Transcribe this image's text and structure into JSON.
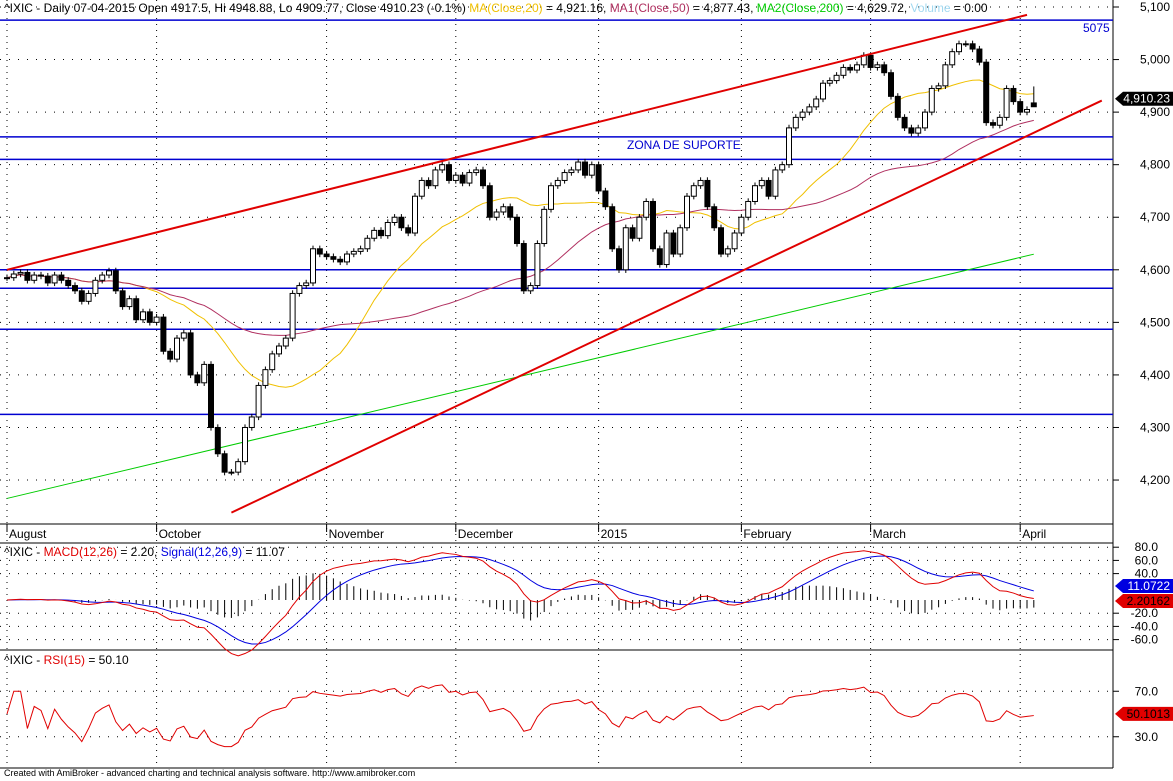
{
  "legend": {
    "main_prefix": "^IXIC - Daily 07-04-2015 Open 4917.5, Hi 4948.88, Lo 4909.77, Close 4910.23 (-0.1%)",
    "ma20_name": "MA(Close,20)",
    "ma20_val": " = 4,921.16, ",
    "ma50_name": "MA1(Close,50)",
    "ma50_val": " = 4,877.43, ",
    "ma200_name": "MA2(Close,200)",
    "ma200_val": " = 4,629.72, ",
    "vol_name": "Volume",
    "vol_val": " = 0.00",
    "macd_prefix": "^IXIC - ",
    "macd_name": "MACD(12,26)",
    "macd_val": " = 2.20, ",
    "signal_name": "Signal(12,26,9)",
    "signal_val": " = 11.07",
    "rsi_prefix": "^IXIC - ",
    "rsi_name": "RSI(15)",
    "rsi_val": " = 50.10"
  },
  "annotations": {
    "zone": "ZONA DE SUPORTE",
    "level_label": "5075"
  },
  "footer": "Created with AmiBroker - advanced charting and technical analysis software. http://www.amibroker.com",
  "colors": {
    "ma20": "#f0c000",
    "ma50": "#b03060",
    "ma200": "#00cc00",
    "volume": "#a0d8f0",
    "trend": "#e00000",
    "levels": "#0000d0",
    "macd": "#e00000",
    "signal": "#0000e0",
    "rsi": "#e00000"
  },
  "chart_data": [
    {
      "type": "candlestick",
      "symbol": "^IXIC",
      "ylim": [
        4130,
        5110
      ],
      "yticks": [
        "4,200",
        "4,300",
        "4,400",
        "4,500",
        "4,600",
        "4,700",
        "4,800",
        "4,900",
        "5,000",
        "5,100"
      ],
      "month_labels": [
        {
          "label": "August",
          "bar": 0
        },
        {
          "label": "October",
          "bar": 22
        },
        {
          "label": "November",
          "bar": 47
        },
        {
          "label": "December",
          "bar": 66
        },
        {
          "label": "2015",
          "bar": 87
        },
        {
          "label": "February",
          "bar": 108
        },
        {
          "label": "March",
          "bar": 127
        },
        {
          "label": "April",
          "bar": 149
        }
      ],
      "close": [
        4585,
        4592,
        4595,
        4580,
        4590,
        4588,
        4575,
        4590,
        4580,
        4570,
        4560,
        4540,
        4555,
        4580,
        4590,
        4598,
        4560,
        4530,
        4545,
        4505,
        4520,
        4500,
        4510,
        4445,
        4430,
        4470,
        4480,
        4400,
        4385,
        4420,
        4300,
        4250,
        4215,
        4215,
        4235,
        4300,
        4320,
        4380,
        4410,
        4440,
        4455,
        4470,
        4555,
        4570,
        4575,
        4640,
        4630,
        4625,
        4620,
        4615,
        4630,
        4635,
        4640,
        4660,
        4675,
        4665,
        4690,
        4700,
        4680,
        4670,
        4740,
        4770,
        4760,
        4790,
        4800,
        4770,
        4780,
        4765,
        4785,
        4790,
        4760,
        4700,
        4710,
        4720,
        4700,
        4650,
        4560,
        4570,
        4650,
        4715,
        4760,
        4770,
        4785,
        4790,
        4805,
        4780,
        4800,
        4750,
        4720,
        4640,
        4600,
        4680,
        4660,
        4700,
        4730,
        4640,
        4610,
        4670,
        4630,
        4680,
        4740,
        4760,
        4770,
        4720,
        4680,
        4630,
        4640,
        4670,
        4700,
        4730,
        4760,
        4770,
        4740,
        4790,
        4800,
        4870,
        4890,
        4900,
        4910,
        4925,
        4955,
        4960,
        4970,
        4985,
        4980,
        4990,
        5008,
        4985,
        4990,
        4975,
        4930,
        4890,
        4870,
        4860,
        4870,
        4900,
        4945,
        4950,
        4990,
        5015,
        5030,
        5030,
        5020,
        4995,
        4880,
        4875,
        4890,
        4945,
        4920,
        4900,
        4905,
        4910.23
      ],
      "last_bar": {
        "open": 4917.5,
        "high": 4948.88,
        "low": 4909.77,
        "close": 4910.23
      },
      "last_price_badge": "4,910.23",
      "ma200": {
        "start": 4165,
        "end": 4629.72
      },
      "horizontal_levels": [
        5075,
        4853,
        4810,
        4600,
        4565,
        4487,
        4325
      ],
      "trendlines": [
        {
          "from": {
            "bar": 0,
            "price": 4600
          },
          "to": {
            "bar": 150,
            "price": 5085
          }
        },
        {
          "from": {
            "bar": 33,
            "price": 4138
          },
          "to": {
            "bar": 161,
            "price": 4922
          }
        }
      ]
    },
    {
      "type": "line",
      "name": "MACD",
      "ylim": [
        -80,
        80
      ],
      "yticks": [
        "80.0",
        "60.0",
        "40.0",
        "-20.0",
        "-40.0",
        "-60.0"
      ],
      "macd_badge": "2.20162",
      "signal_badge": "11.0722"
    },
    {
      "type": "line",
      "name": "RSI",
      "period": 15,
      "ylim": [
        25,
        78
      ],
      "yticks": [
        "70.0",
        "30.0"
      ],
      "rsi_badge": "50.1013"
    }
  ]
}
